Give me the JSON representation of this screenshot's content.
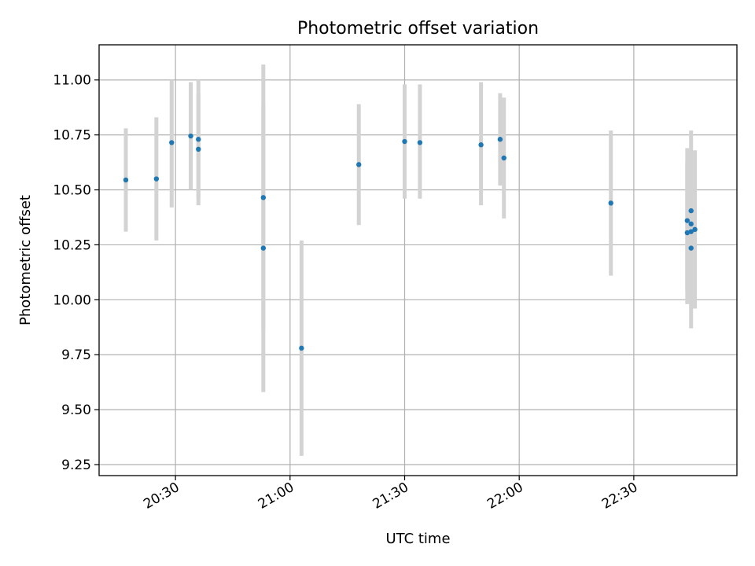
{
  "chart_data": {
    "type": "scatter",
    "title": "Photometric offset variation",
    "xlabel": "UTC time",
    "ylabel": "Photometric offset",
    "grid": true,
    "x_ticks": [
      "20:30",
      "21:00",
      "21:30",
      "22:00",
      "22:30"
    ],
    "y_ticks": [
      "9.25",
      "9.50",
      "9.75",
      "10.00",
      "10.25",
      "10.50",
      "10.75",
      "11.00"
    ],
    "xlim": [
      "20:10",
      "22:57"
    ],
    "ylim": [
      9.2,
      11.16
    ],
    "points": [
      {
        "x": "20:17",
        "y": 10.545,
        "err_low": 10.31,
        "err_high": 10.78
      },
      {
        "x": "20:25",
        "y": 10.55,
        "err_low": 10.27,
        "err_high": 10.83
      },
      {
        "x": "20:29",
        "y": 10.715,
        "err_low": 10.42,
        "err_high": 11.0
      },
      {
        "x": "20:34",
        "y": 10.745,
        "err_low": 10.5,
        "err_high": 10.99
      },
      {
        "x": "20:36",
        "y": 10.685,
        "err_low": 10.43,
        "err_high": 10.94
      },
      {
        "x": "20:36",
        "y": 10.73,
        "err_low": 10.46,
        "err_high": 11.0
      },
      {
        "x": "20:53",
        "y": 10.465,
        "err_low": 9.86,
        "err_high": 11.07
      },
      {
        "x": "20:53",
        "y": 10.235,
        "err_low": 9.58,
        "err_high": 10.89
      },
      {
        "x": "21:03",
        "y": 9.78,
        "err_low": 9.29,
        "err_high": 10.27
      },
      {
        "x": "21:18",
        "y": 10.615,
        "err_low": 10.34,
        "err_high": 10.89
      },
      {
        "x": "21:30",
        "y": 10.72,
        "err_low": 10.46,
        "err_high": 10.98
      },
      {
        "x": "21:34",
        "y": 10.715,
        "err_low": 10.46,
        "err_high": 10.98
      },
      {
        "x": "21:50",
        "y": 10.705,
        "err_low": 10.43,
        "err_high": 10.99
      },
      {
        "x": "21:55",
        "y": 10.73,
        "err_low": 10.52,
        "err_high": 10.94
      },
      {
        "x": "21:56",
        "y": 10.645,
        "err_low": 10.37,
        "err_high": 10.92
      },
      {
        "x": "22:24",
        "y": 10.44,
        "err_low": 10.11,
        "err_high": 10.77
      },
      {
        "x": "22:44",
        "y": 10.36,
        "err_low": 10.04,
        "err_high": 10.69
      },
      {
        "x": "22:44",
        "y": 10.305,
        "err_low": 9.98,
        "err_high": 10.63
      },
      {
        "x": "22:45",
        "y": 10.235,
        "err_low": 9.87,
        "err_high": 10.6
      },
      {
        "x": "22:45",
        "y": 10.31,
        "err_low": 9.99,
        "err_high": 10.64
      },
      {
        "x": "22:45",
        "y": 10.345,
        "err_low": 10.02,
        "err_high": 10.67
      },
      {
        "x": "22:45",
        "y": 10.405,
        "err_low": 10.04,
        "err_high": 10.77
      },
      {
        "x": "22:46",
        "y": 10.32,
        "err_low": 9.96,
        "err_high": 10.68
      }
    ],
    "marker_color": "#1f77b4",
    "errorbar_color": "#d3d3d3"
  }
}
